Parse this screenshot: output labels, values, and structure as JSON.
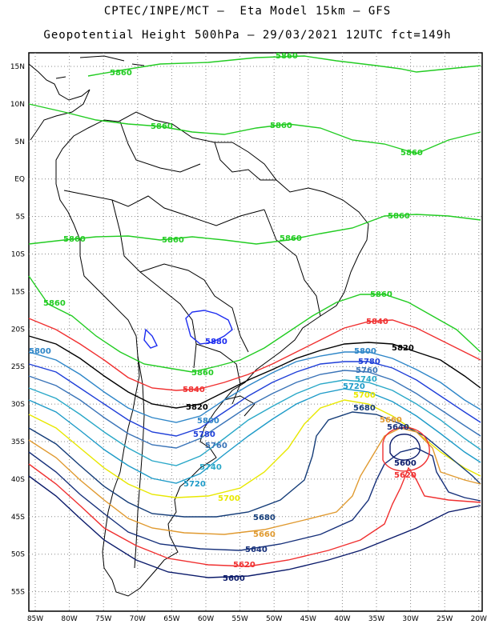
{
  "header": {
    "line1": "CPTEC/INPE/MCT –  Eta Model 15km – GFS",
    "line2": "Geopotential Height 500hPa – 29/03/2021 12UTC fct=149h"
  },
  "axes": {
    "lon_labels": [
      "85W",
      "80W",
      "75W",
      "70W",
      "65W",
      "60W",
      "55W",
      "50W",
      "45W",
      "40W",
      "35W",
      "30W",
      "25W",
      "20W"
    ],
    "lat_labels": [
      "15N",
      "10N",
      "5N",
      "EQ",
      "5S",
      "10S",
      "15S",
      "20S",
      "25S",
      "30S",
      "35S",
      "40S",
      "45S",
      "50S",
      "55S"
    ]
  },
  "contours": [
    {
      "level": "5880",
      "color": "#1c2cf0"
    },
    {
      "level": "5860",
      "color": "#22cc22"
    },
    {
      "level": "5840",
      "color": "#f03030"
    },
    {
      "level": "5820",
      "color": "#000000"
    },
    {
      "level": "5800",
      "color": "#2e86c8"
    },
    {
      "level": "5780",
      "color": "#1f3fd8"
    },
    {
      "level": "5760",
      "color": "#3a74b8"
    },
    {
      "level": "5740",
      "color": "#2aa8c8"
    },
    {
      "level": "5720",
      "color": "#1e9bc8"
    },
    {
      "level": "5700",
      "color": "#e8e800"
    },
    {
      "level": "5680",
      "color": "#143c78"
    },
    {
      "level": "5660",
      "color": "#e09a30"
    },
    {
      "level": "5640",
      "color": "#16307a"
    },
    {
      "level": "5620",
      "color": "#f03030"
    },
    {
      "level": "5600",
      "color": "#0a1a6a"
    }
  ]
}
